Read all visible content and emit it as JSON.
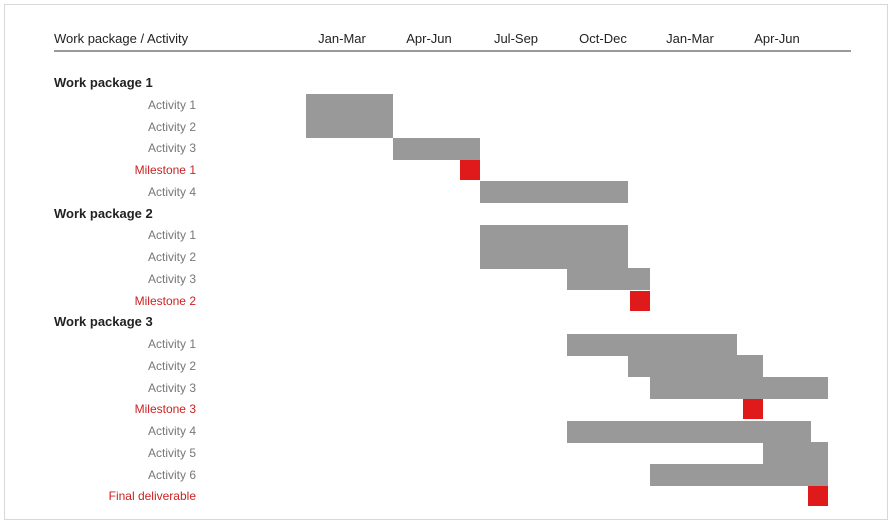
{
  "header": {
    "label_column": "Work package / Activity"
  },
  "colors": {
    "bar": "#999999",
    "milestone": "#e01a1a",
    "milestone_label": "#cc2222"
  },
  "chart_data": {
    "type": "gantt",
    "periods": [
      "Jan-Mar",
      "Apr-Jun",
      "Jul-Sep",
      "Oct-Dec",
      "Jan-Mar",
      "Apr-Jun"
    ],
    "rows": [
      {
        "kind": "wp",
        "label": "Work package 1"
      },
      {
        "kind": "activity",
        "label": "Activity 1",
        "start": 0,
        "end": 1
      },
      {
        "kind": "activity",
        "label": "Activity 2",
        "start": 0,
        "end": 1
      },
      {
        "kind": "activity",
        "label": "Activity 3",
        "start": 1,
        "end": 2
      },
      {
        "kind": "milestone",
        "label": "Milestone 1",
        "at": 2
      },
      {
        "kind": "activity",
        "label": "Activity 4",
        "start": 2,
        "end": 3.7
      },
      {
        "kind": "wp",
        "label": "Work package 2"
      },
      {
        "kind": "activity",
        "label": "Activity 1",
        "start": 2,
        "end": 3.7
      },
      {
        "kind": "activity",
        "label": "Activity 2",
        "start": 2,
        "end": 3.7
      },
      {
        "kind": "activity",
        "label": "Activity 3",
        "start": 3,
        "end": 3.95
      },
      {
        "kind": "milestone",
        "label": "Milestone 2",
        "at": 3.95
      },
      {
        "kind": "wp",
        "label": "Work package 3"
      },
      {
        "kind": "activity",
        "label": "Activity 1",
        "start": 3,
        "end": 4.95
      },
      {
        "kind": "activity",
        "label": "Activity 2",
        "start": 3.7,
        "end": 5.25
      },
      {
        "kind": "activity",
        "label": "Activity 3",
        "start": 3.95,
        "end": 6
      },
      {
        "kind": "milestone",
        "label": "Milestone 3",
        "at": 5.25
      },
      {
        "kind": "activity",
        "label": "Activity 4",
        "start": 3,
        "end": 5.8
      },
      {
        "kind": "activity",
        "label": "Activity 5",
        "start": 5.25,
        "end": 6
      },
      {
        "kind": "activity",
        "label": "Activity 6",
        "start": 3.95,
        "end": 6
      },
      {
        "kind": "milestone",
        "label": "Final deliverable",
        "at": 6
      }
    ]
  }
}
